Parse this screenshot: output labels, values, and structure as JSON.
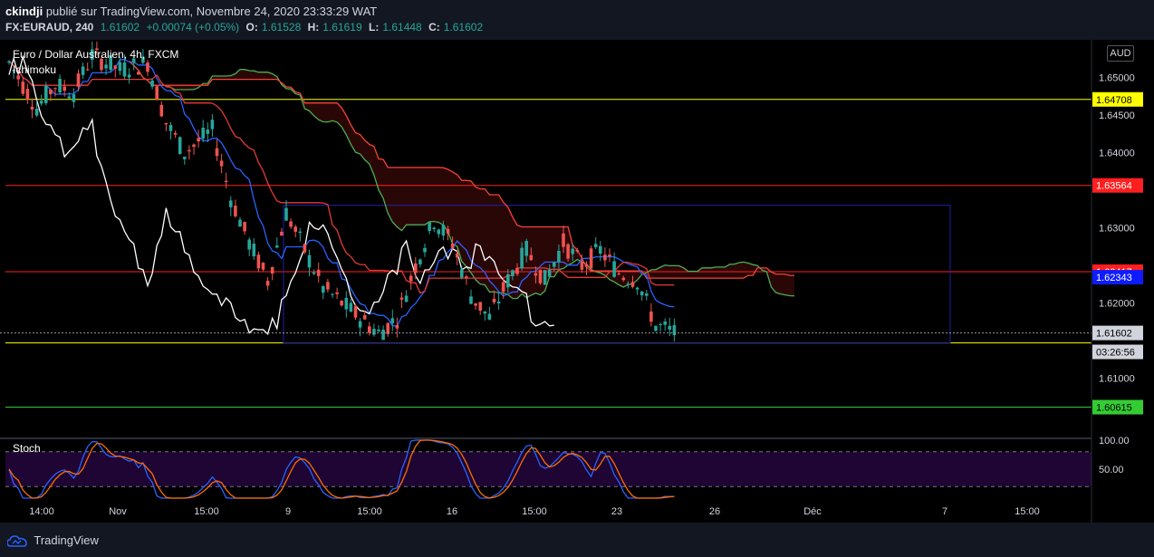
{
  "header": {
    "author": "ckindji",
    "published_text": "publié sur TradingView.com, Novembre 24, 2020 23:33:29 WAT",
    "symbol": "FX:EURAUD, 240",
    "last": "1.61602",
    "change": "+0.00074 (+0.05%)",
    "o_label": "O:",
    "o_value": "1.61528",
    "h_label": "H:",
    "h_value": "1.61619",
    "l_label": "L:",
    "l_value": "1.61448",
    "c_label": "C:",
    "c_value": "1.61602"
  },
  "legend": {
    "symbol_title": "Euro / Dollar Australien, 4h, FXCM",
    "indicator": "Ichimoku",
    "oscillator": "Stoch"
  },
  "currency_badge": "AUD",
  "footer": {
    "brand": "TradingView"
  },
  "colors": {
    "bg": "#131722",
    "up": "#26a69a",
    "down": "#ef5350",
    "conversion": "#2962ff",
    "base": "#e53935",
    "lagging": "#ffffff",
    "span_a": "#4caf50",
    "span_b": "#f44336",
    "box": "#1e22aa",
    "yellow": "#ffff00",
    "red_line": "#ff1f1f",
    "green_line": "#33cc33",
    "stoch_k": "#2962ff",
    "stoch_d": "#ff6d00",
    "stoch_bg": "#1e0533"
  },
  "chart_data": {
    "type": "candlestick",
    "y_range": [
      1.602,
      1.655
    ],
    "y_ticks": [
      "1.65000",
      "1.64500",
      "1.64000",
      "1.63000",
      "1.62000",
      "1.61000"
    ],
    "y_tick_values": [
      1.65,
      1.645,
      1.64,
      1.63,
      1.62,
      1.61
    ],
    "x_ticks": [
      "14:00",
      "Nov",
      "15:00",
      "9",
      "15:00",
      "16",
      "15:00",
      "23",
      "26",
      "Déc",
      "7",
      "15:00"
    ],
    "price_labels": [
      {
        "text": "1.64708",
        "value": 1.64708,
        "bg": "#ffff00",
        "fg": "#000000"
      },
      {
        "text": "1.63564",
        "value": 1.63564,
        "bg": "#ff1f1f",
        "fg": "#ffffff"
      },
      {
        "text": "1.62417",
        "value": 1.62417,
        "bg": "#ff1f1f",
        "fg": "#ffffff"
      },
      {
        "text": "1.62343",
        "value": 1.62343,
        "bg": "#0d1bff",
        "fg": "#ffffff"
      },
      {
        "text": "1.61602",
        "value": 1.61602,
        "bg": "#d1d4dc",
        "fg": "#000000"
      },
      {
        "text": "03:26:56",
        "value": 1.6135,
        "bg": "#d1d4dc",
        "fg": "#000000"
      },
      {
        "text": "1.60615",
        "value": 1.60615,
        "bg": "#33cc33",
        "fg": "#000000"
      }
    ],
    "horizontal_lines": [
      {
        "value": 1.64708,
        "color": "#ffff00"
      },
      {
        "value": 1.63564,
        "color": "#ff1f1f"
      },
      {
        "value": 1.62417,
        "color": "#ff1f1f"
      },
      {
        "value": 1.6147,
        "color": "#ffff00"
      },
      {
        "value": 1.60615,
        "color": "#33cc33"
      }
    ],
    "current_price": 1.61602,
    "range_box": {
      "top": 1.633,
      "bottom": 1.6147
    },
    "stoch_ticks": [
      "100.00",
      "50.00"
    ],
    "stoch_tick_values": [
      100,
      50
    ],
    "stoch_range": [
      0,
      100
    ],
    "stoch_levels": [
      80,
      20
    ]
  }
}
